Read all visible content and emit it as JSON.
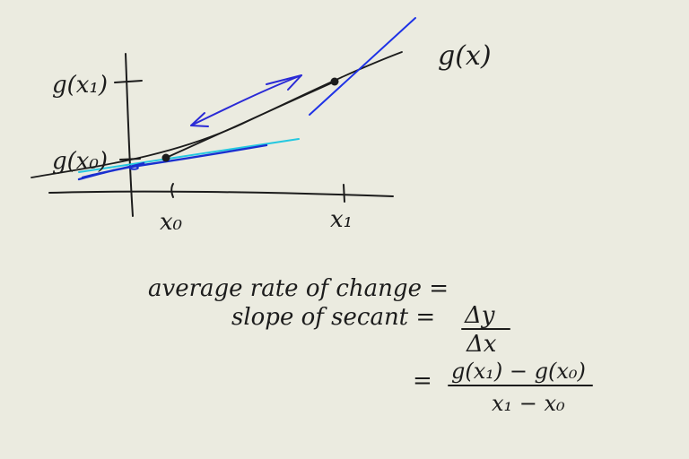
{
  "graph": {
    "curve_label": "g(x)",
    "y_tick_labels": {
      "x1": "g(x₁)",
      "x0": "g(x₀)"
    },
    "x_tick_labels": {
      "x0": "x₀",
      "x1": "x₁"
    },
    "colors": {
      "ink": "#1c1c1c",
      "secant_arrow": "#2a2ad6",
      "tangent_x1": "#1e32e6",
      "tangent_x0": "#1a2fd0",
      "tangent_x0_light": "#25c8e0",
      "background": "#ebebe0"
    }
  },
  "formula": {
    "line1": "average rate of change =",
    "line2_left": "slope of secant =",
    "line2_num": "Δy",
    "line2_den": "Δx",
    "line3_eq": "=",
    "line3_num": "g(x₁) − g(x₀)",
    "line3_den": "x₁ − x₀"
  }
}
